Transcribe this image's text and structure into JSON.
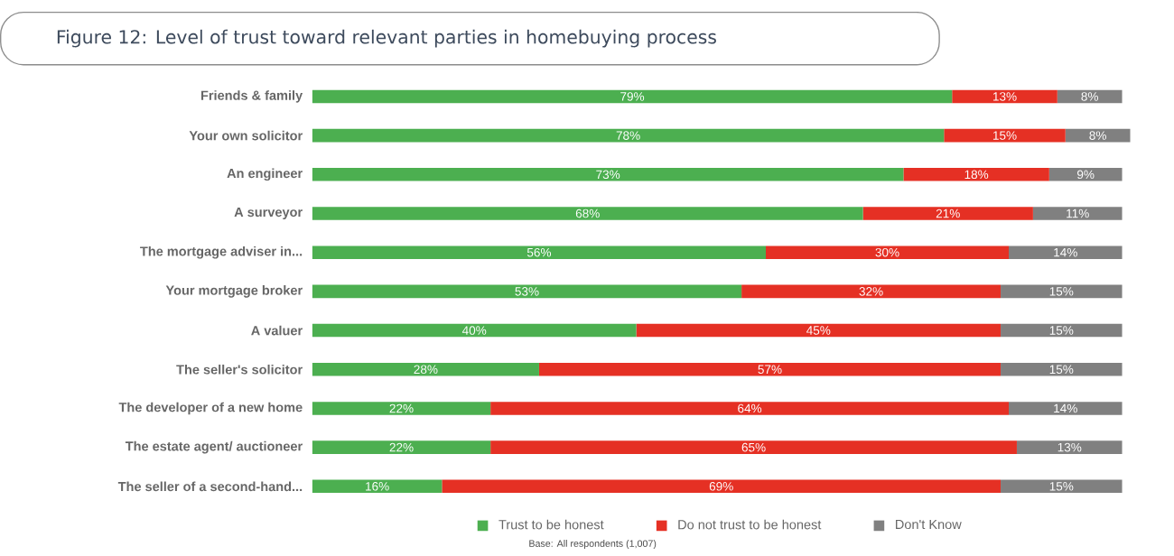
{
  "chart_data": {
    "type": "bar",
    "title": "Figure 12: Level of trust toward relevant parties in homebuying process",
    "categories": [
      "Friends & family",
      "Your own solicitor",
      "An engineer",
      "A surveyor",
      "The mortgage adviser in...",
      "Your mortgage broker",
      "A valuer",
      "The seller's solicitor",
      "The developer of a new home",
      "The estate agent/ auctioneer",
      "The seller of a second-hand..."
    ],
    "orientation": "horizontal",
    "stacked": true,
    "legend": "bottom",
    "series": [
      {
        "name": "Trust to be honest",
        "color": "#4caf50",
        "values": [
          79,
          78,
          73,
          68,
          56,
          53,
          40,
          28,
          22,
          22,
          16
        ],
        "value_labels": [
          "79%",
          "78%",
          "73%",
          "68%",
          "56%",
          "53%",
          "40%",
          "28%",
          "22%",
          "22%",
          "16%"
        ]
      },
      {
        "name": "Do not trust to be honest",
        "color": "#e53024",
        "values": [
          13,
          15,
          18,
          21,
          30,
          32,
          45,
          57,
          64,
          65,
          69
        ],
        "value_labels": [
          "13%",
          "15%",
          "18%",
          "21%",
          "30%",
          "32%",
          "45%",
          "57%",
          "64%",
          "65%",
          "69%"
        ]
      },
      {
        "name": "Don't Know",
        "color": "#808080",
        "values": [
          8,
          8,
          9,
          11,
          14,
          15,
          15,
          15,
          14,
          13,
          15
        ],
        "value_labels": [
          "8%",
          "8%",
          "9%",
          "11%",
          "14%",
          "15%",
          "15%",
          "15%",
          "14%",
          "13%",
          "15%"
        ]
      }
    ],
    "annotations": [
      "Base: All respondents (1,007)"
    ]
  }
}
